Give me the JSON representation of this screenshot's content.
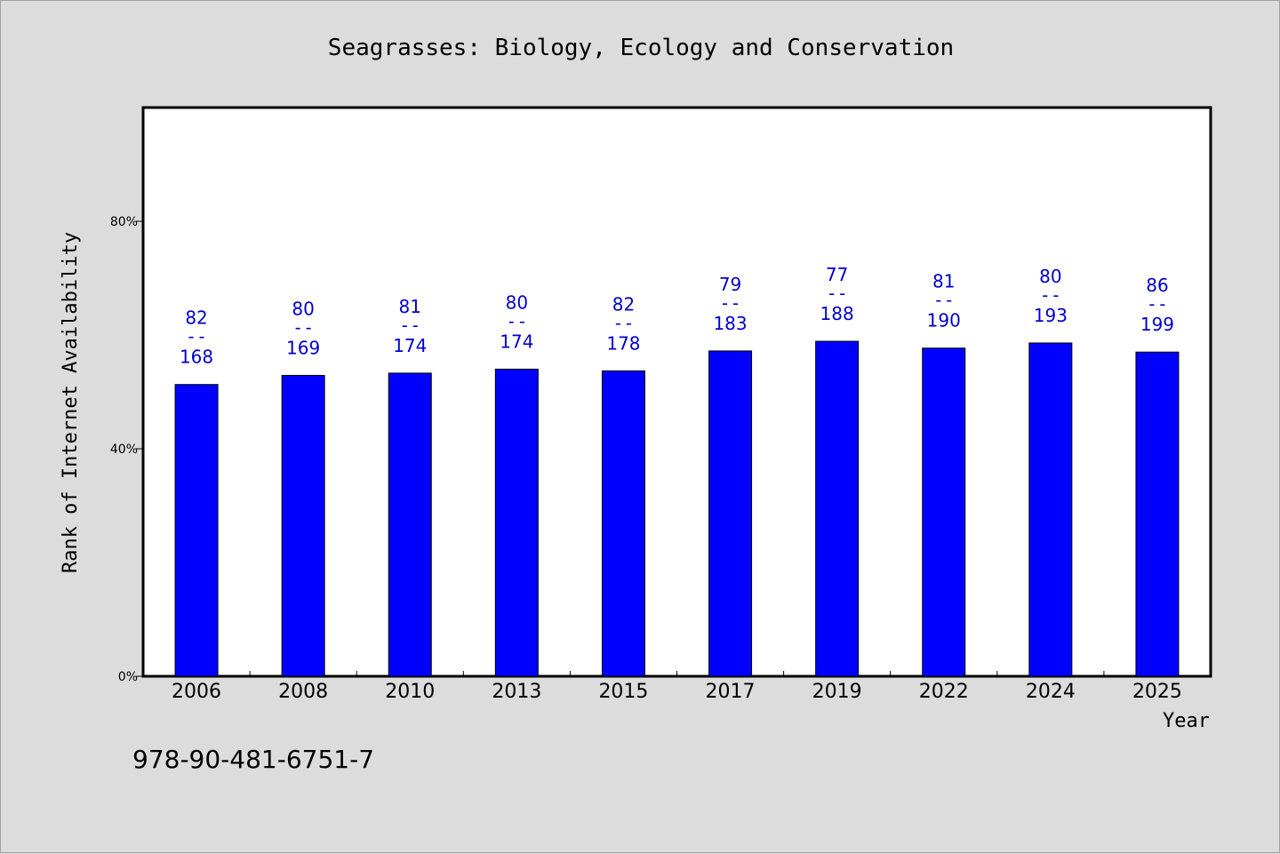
{
  "chart_data": {
    "type": "bar",
    "title": "Seagrasses: Biology, Ecology and Conservation",
    "xlabel": "Year",
    "ylabel": "Rank of Internet Availability",
    "categories": [
      "2006",
      "2008",
      "2010",
      "2013",
      "2015",
      "2017",
      "2019",
      "2022",
      "2024",
      "2025"
    ],
    "series": [
      {
        "values": [
          51.3,
          52.9,
          53.3,
          54.0,
          53.7,
          57.2,
          58.9,
          57.7,
          58.6,
          57.0
        ],
        "rank": [
          82,
          80,
          81,
          80,
          82,
          79,
          77,
          81,
          80,
          86
        ],
        "total": [
          168,
          169,
          174,
          174,
          178,
          183,
          188,
          190,
          193,
          199
        ]
      }
    ],
    "data_labels": [
      {
        "top": "82",
        "sep": "--",
        "bottom": "168"
      },
      {
        "top": "80",
        "sep": "--",
        "bottom": "169"
      },
      {
        "top": "81",
        "sep": "--",
        "bottom": "174"
      },
      {
        "top": "80",
        "sep": "--",
        "bottom": "174"
      },
      {
        "top": "82",
        "sep": "--",
        "bottom": "178"
      },
      {
        "top": "79",
        "sep": "--",
        "bottom": "183"
      },
      {
        "top": "77",
        "sep": "--",
        "bottom": "188"
      },
      {
        "top": "81",
        "sep": "--",
        "bottom": "190"
      },
      {
        "top": "80",
        "sep": "--",
        "bottom": "193"
      },
      {
        "top": "86",
        "sep": "--",
        "bottom": "199"
      }
    ],
    "yticks": [
      {
        "value": 0,
        "label": "0%"
      },
      {
        "value": 40,
        "label": "40%"
      },
      {
        "value": 80,
        "label": "80%"
      }
    ],
    "ylim": [
      0,
      100
    ],
    "grid": false,
    "bar_color": "#0000ff",
    "label_color": "#0000cc"
  },
  "footer": {
    "isbn": "978-90-481-6751-7"
  }
}
